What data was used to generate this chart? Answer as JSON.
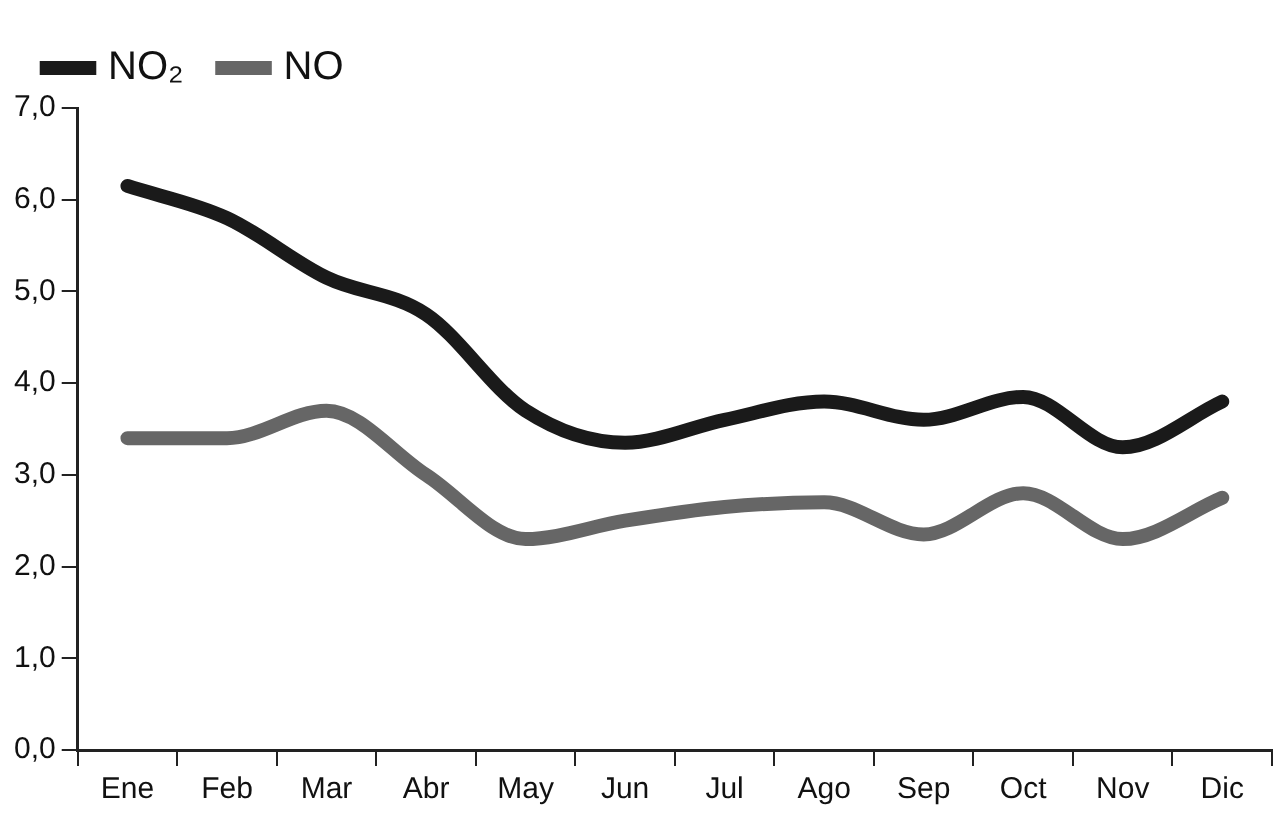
{
  "chart_data": {
    "type": "line",
    "categories": [
      "Ene",
      "Feb",
      "Mar",
      "Abr",
      "May",
      "Jun",
      "Jul",
      "Ago",
      "Sep",
      "Oct",
      "Nov",
      "Dic"
    ],
    "series": [
      {
        "name": "NO₂",
        "color": "#1a1a1a",
        "values": [
          6.15,
          5.8,
          5.15,
          4.75,
          3.7,
          3.35,
          3.6,
          3.8,
          3.6,
          3.85,
          3.3,
          3.8
        ]
      },
      {
        "name": "NO",
        "color": "#666666",
        "values": [
          3.4,
          3.4,
          3.7,
          3.0,
          2.3,
          2.5,
          2.65,
          2.7,
          2.35,
          2.8,
          2.3,
          2.75
        ]
      }
    ],
    "ylim": [
      0,
      7
    ],
    "yticks": [
      {
        "value": 0,
        "label": "0,0"
      },
      {
        "value": 1,
        "label": "1,0"
      },
      {
        "value": 2,
        "label": "2,0"
      },
      {
        "value": 3,
        "label": "3,0"
      },
      {
        "value": 4,
        "label": "4,0"
      },
      {
        "value": 5,
        "label": "5,0"
      },
      {
        "value": 6,
        "label": "6,0"
      },
      {
        "value": 7,
        "label": "7,0"
      }
    ],
    "grid": false,
    "legend": "top left",
    "marker": "none",
    "line_style": "solid"
  }
}
